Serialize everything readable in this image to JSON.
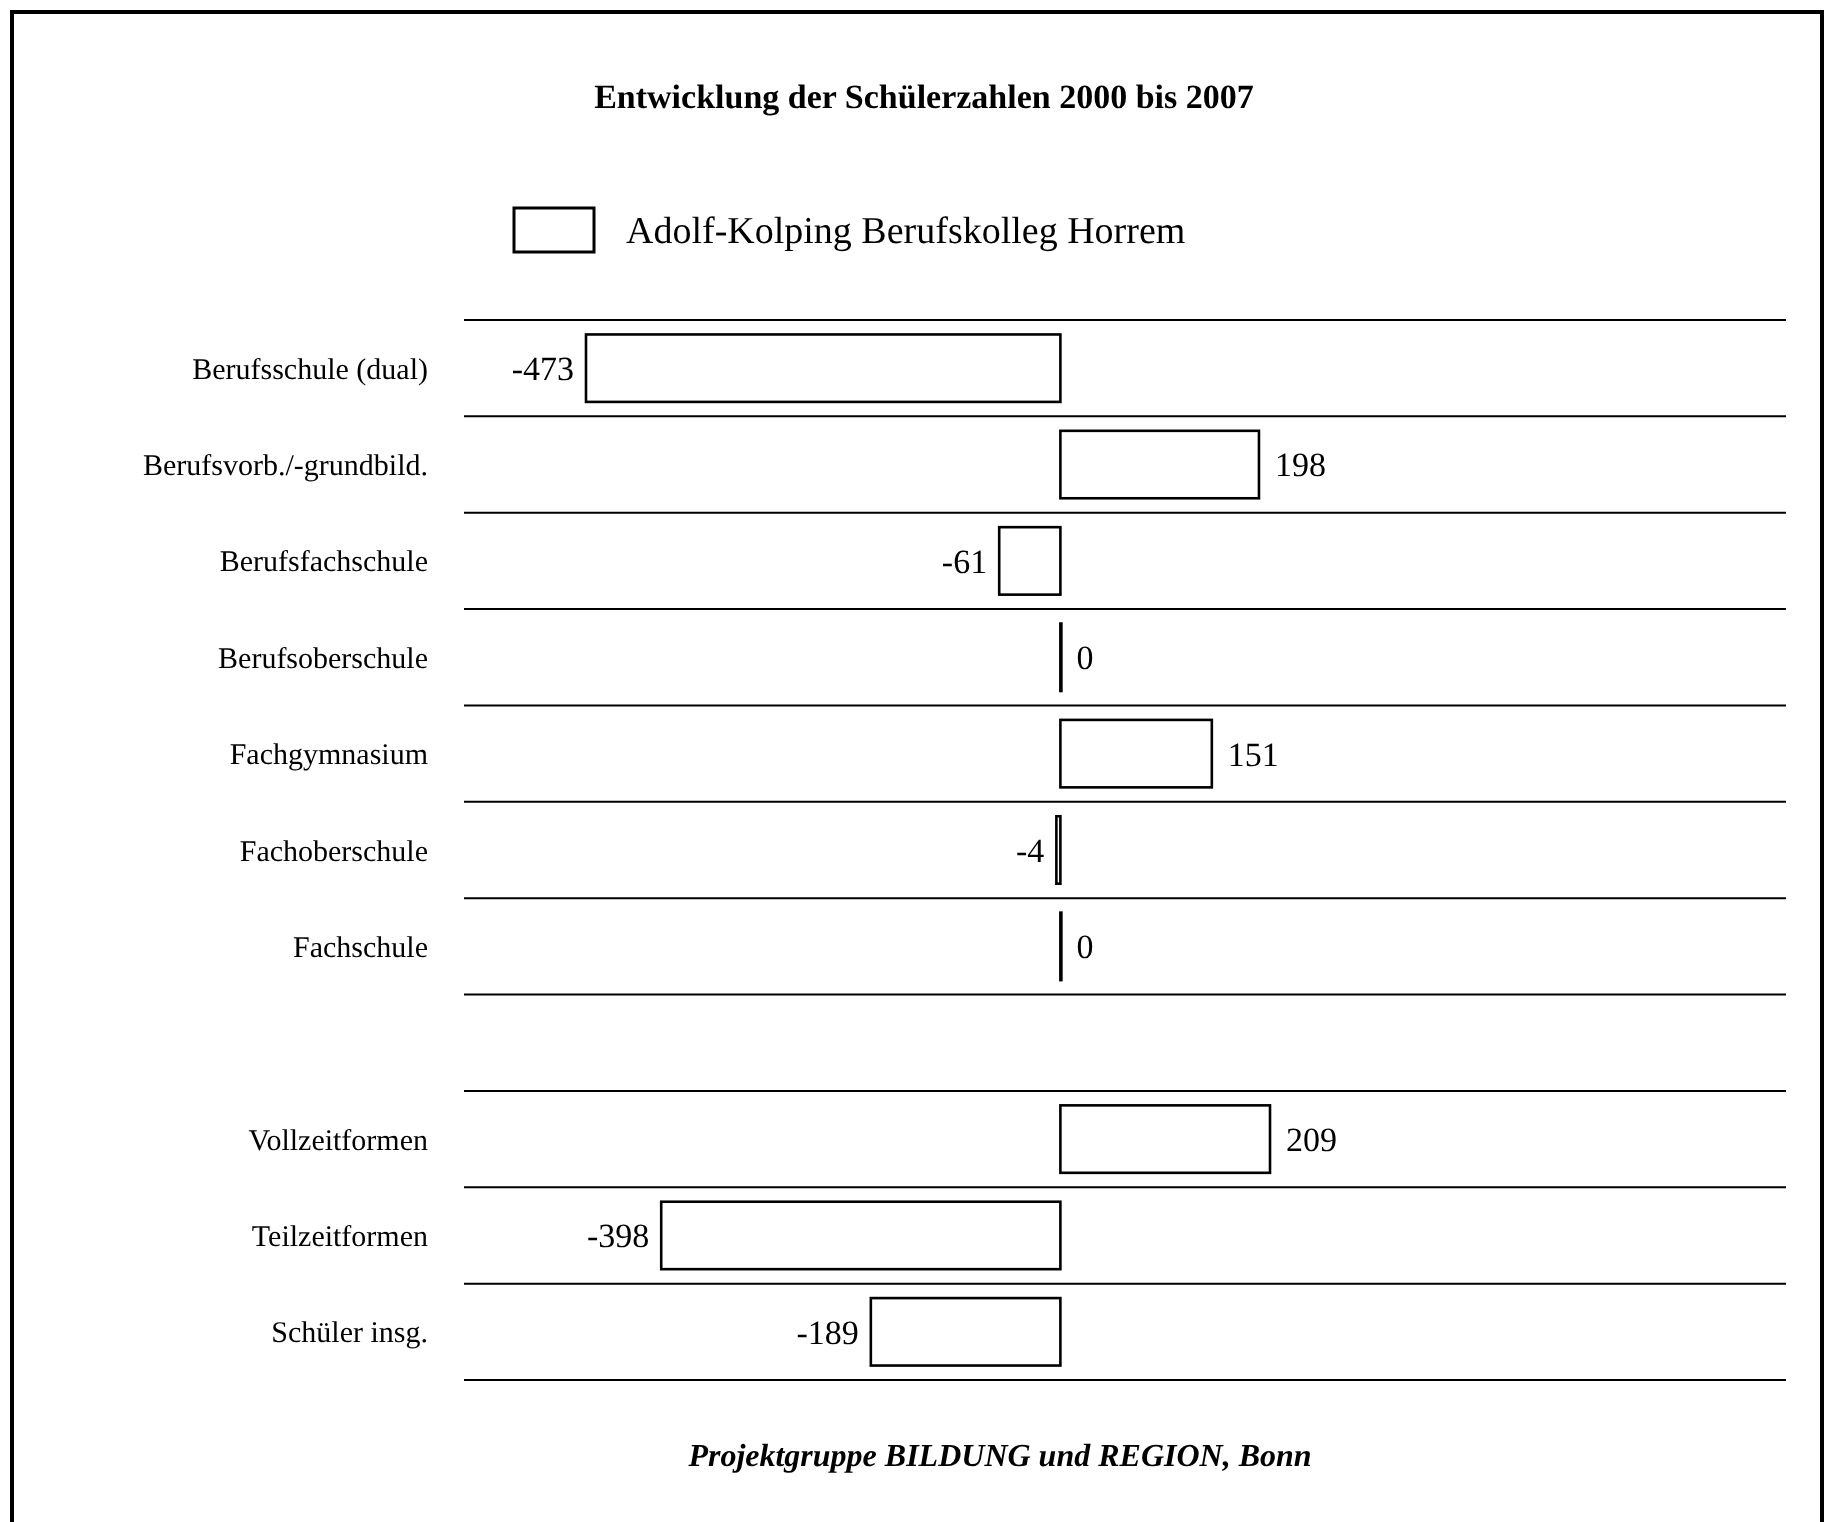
{
  "chart_data": {
    "type": "bar",
    "orientation": "horizontal",
    "title": "Entwicklung der Schülerzahlen 2000 bis 2007",
    "categories": [
      "Berufsschule (dual)",
      "Berufsvorb./-grundbild.",
      "Berufsfachschule",
      "Berufsoberschule",
      "Fachgymnasium",
      "Fachoberschule",
      "Fachschule",
      null,
      "Vollzeitformen",
      "Teilzeitformen",
      "Schüler insg."
    ],
    "series": [
      {
        "name": "Adolf-Kolping Berufskolleg Horrem",
        "color": "#ffffff",
        "values": [
          -473,
          198,
          -61,
          0,
          151,
          -4,
          0,
          null,
          209,
          -398,
          -189
        ]
      }
    ],
    "data_labels": true,
    "legend": "top",
    "grid": "y",
    "annotations": [
      "Projektgruppe BILDUNG und REGION, Bonn"
    ]
  }
}
